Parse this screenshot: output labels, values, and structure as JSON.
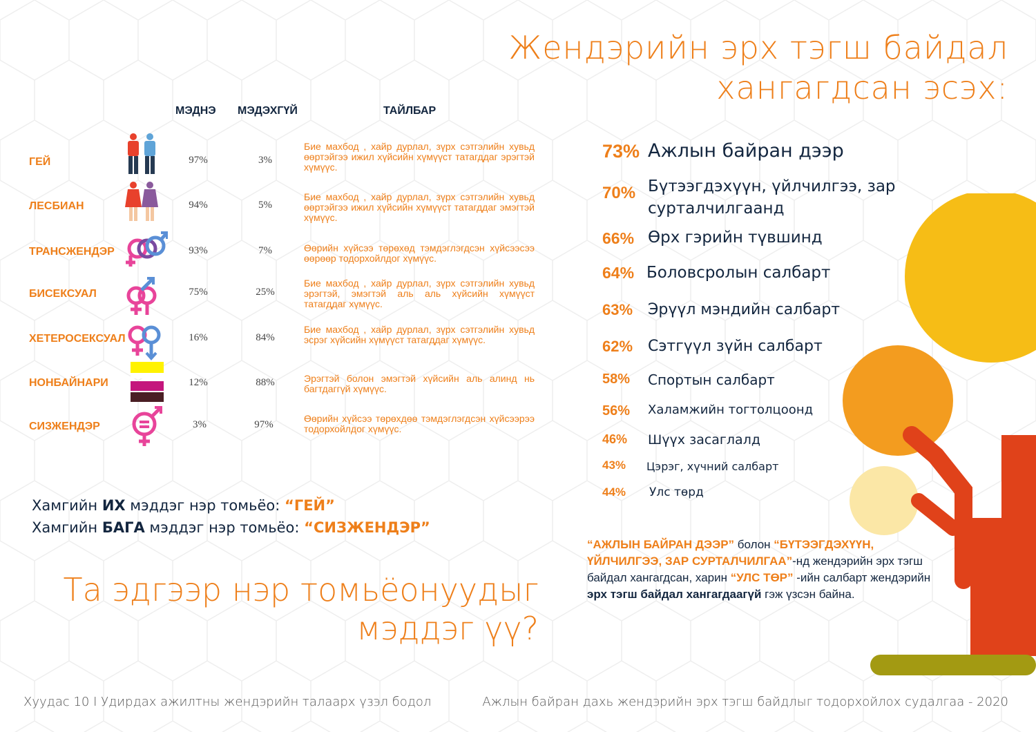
{
  "title": {
    "line1": "Жендэрийн эрх тэгш байдал",
    "line2": "хангагдсан эсэх:"
  },
  "table": {
    "headers": {
      "know": "МЭДНЭ",
      "dont_know": "МЭДЭХГҮЙ",
      "description": "ТАЙЛБАР"
    },
    "rows": [
      {
        "name": "ГЕЙ",
        "icon": "two-men-icon",
        "know": "97%",
        "dont_know": "3%",
        "description": "Бие махбод , хайр дурлал, зүрх сэтгэлийн хувьд өөртэйгээ ижил хүйсийн хүмүүст татагддаг эрэгтэй хүмүүс."
      },
      {
        "name": "ЛЕСБИАН",
        "icon": "two-women-icon",
        "know": "94%",
        "dont_know": "5%",
        "description": "Бие махбод , хайр дурлал, зүрх сэтгэлийн хувьд өөртэйгээ ижил хүйсийн хүмүүст татагддаг эмэгтэй хүмүүс."
      },
      {
        "name": "ТРАНСЖЕНДЭР",
        "icon": "transgender-symbol-icon",
        "know": "93%",
        "dont_know": "7%",
        "description": "Өөрийн хүйсээ төрөхөд тэмдэглэгдсэн хүйсээсээ өөрөөр тодорхойлдог хүмүүс."
      },
      {
        "name": "БИСЕКСУАЛ",
        "icon": "bisexual-symbol-icon",
        "know": "75%",
        "dont_know": "25%",
        "description": "Бие махбод , хайр дурлал, зүрх сэтгэлийн хувьд эрэгтэй, эмэгтэй аль аль хүйсийн хүмүүст татагддаг хүмүүс."
      },
      {
        "name": "ХЕТЕРОСЕКСУАЛ",
        "icon": "heterosexual-symbol-icon",
        "know": "16%",
        "dont_know": "84%",
        "description": "Бие махбод , хайр дурлал, зүрх сэтгэлийн хувьд эсрэг хүйсийн хүмүүст татагддаг хүмүүс."
      },
      {
        "name": "НОНБАЙНАРИ",
        "icon": "nonbinary-flag-icon",
        "know": "12%",
        "dont_know": "88%",
        "description": "Эрэгтэй болон эмэгтэй хүйсийн аль алинд нь багтдаггүй хүмүүс."
      },
      {
        "name": "СИЗЖЕНДЭР",
        "icon": "cisgender-symbol-icon",
        "know": "3%",
        "dont_know": "97%",
        "description": "Өөрийн хүйсээ төрөхдөө тэмдэглэгдсэн хүйсээрээ тодорхойлдог хүмүүс."
      }
    ]
  },
  "stats": [
    {
      "pct": "73%",
      "label": "Ажлын байран дээр"
    },
    {
      "pct": "70%",
      "label": "Бүтээгдэхүүн, үйлчилгээ, зар",
      "label2": "сурталчилгаанд"
    },
    {
      "pct": "66%",
      "label": "Өрх гэрийн түвшинд"
    },
    {
      "pct": "64%",
      "label": "Боловсролын салбарт"
    },
    {
      "pct": "63%",
      "label": "Эрүүл мэндийн салбарт"
    },
    {
      "pct": "62%",
      "label": "Сэтгүүл зүйн салбарт"
    },
    {
      "pct": "58%",
      "label": "Спортын салбарт"
    },
    {
      "pct": "56%",
      "label": "Халамжийн тогтолцоонд"
    },
    {
      "pct": "46%",
      "label": "Шүүх засаглалд"
    },
    {
      "pct": "43%",
      "label": "Цэрэг, хүчний салбарт"
    },
    {
      "pct": "44%",
      "label": "Улс төрд"
    }
  ],
  "summary": {
    "most_prefix": "Хамгийн ",
    "most_bold": "ИХ",
    "most_mid": " мэддэг нэр томьёо: ",
    "most_term": "“ГЕЙ”",
    "least_prefix": "Хамгийн ",
    "least_bold": "БАГА",
    "least_mid": " мэддэг нэр томьёо: ",
    "least_term": "“СИЗЖЕНДЭР”"
  },
  "question": {
    "line1": "Та эдгээр нэр томьёонуудыг",
    "line2": "мэддэг үү?"
  },
  "note": {
    "q1": "“АЖЛЫН БАЙРАН ДЭЭР”",
    "t1": " болон ",
    "q2": "“БҮТЭЭГДЭХҮҮН, ҮЙЛЧИЛГЭЭ, ЗАР СУРТАЛЧИЛГАА”",
    "t2": "-нд жендэрийн эрх тэгш байдал хангагдсан, харин ",
    "q3": "“УЛС ТӨР”",
    "t3": " -ийн салбарт жендэрийн ",
    "b1": "эрх тэгш байдал хангагдаагүй",
    "t4": " гэж үзсэн байна."
  },
  "footer": {
    "left": "Хуудас 10 I Удирдах ажилтны жендэрийн талаарх үзэл бодол",
    "right": "Ажлын байран дахь жендэрийн эрх  тэгш байдлыг тодорхойлох судалгаа - 2020"
  },
  "colors": {
    "accent": "#ee7f1a",
    "navy": "#13263f",
    "yellow": "#f6bd16",
    "amber": "#f39c1f",
    "cream": "#fbe7a6",
    "red": "#e0421a",
    "olive": "#a39a12",
    "pink": "#e8449a",
    "blue": "#5a8fd6"
  }
}
